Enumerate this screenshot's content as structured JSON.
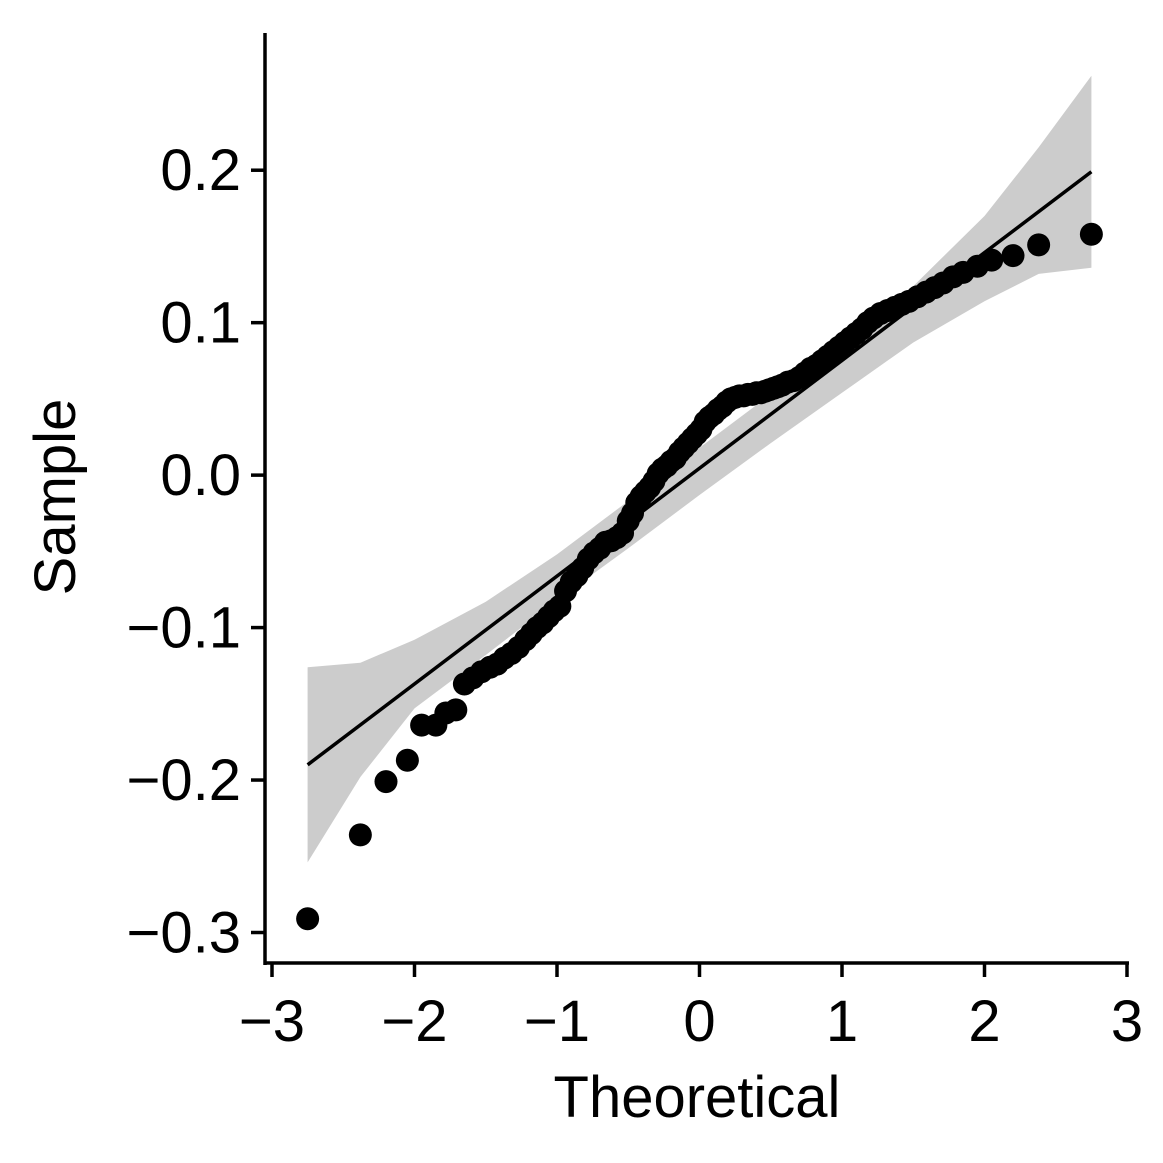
{
  "chart_data": {
    "type": "scatter",
    "subtype": "qq-plot",
    "title": "",
    "xlabel": "Theoretical",
    "ylabel": "Sample",
    "xlim": [
      -3,
      3
    ],
    "ylim": [
      -0.32,
      0.29
    ],
    "x_ticks": [
      -3,
      -2,
      -1,
      0,
      1,
      2,
      3
    ],
    "x_tick_labels": [
      "−3",
      "−2",
      "−1",
      "0",
      "1",
      "2",
      "3"
    ],
    "y_ticks": [
      -0.3,
      -0.2,
      -0.1,
      0.0,
      0.1,
      0.2
    ],
    "y_tick_labels": [
      "−0.3",
      "−0.2",
      "−0.1",
      "0.0",
      "0.1",
      "0.2"
    ],
    "grid": false,
    "legend": "none",
    "colors": {
      "points": "#000000",
      "line": "#000000",
      "band": "#cccccc"
    },
    "reference_line": {
      "x": [
        -2.75,
        2.75
      ],
      "y": [
        -0.19,
        0.199
      ]
    },
    "confidence_band": {
      "x": [
        -2.75,
        -2.38,
        -2.0,
        -1.5,
        -1.0,
        -0.5,
        0.0,
        0.5,
        1.0,
        1.5,
        2.0,
        2.38,
        2.75
      ],
      "upper": [
        -0.126,
        -0.123,
        -0.108,
        -0.083,
        -0.052,
        -0.017,
        0.018,
        0.053,
        0.086,
        0.124,
        0.17,
        0.215,
        0.262
      ],
      "lower": [
        -0.254,
        -0.198,
        -0.153,
        -0.118,
        -0.082,
        -0.048,
        -0.013,
        0.021,
        0.054,
        0.087,
        0.114,
        0.132,
        0.136
      ]
    },
    "points": {
      "x": [
        -2.75,
        -2.38,
        -2.2,
        -2.05,
        -1.95,
        -1.85,
        -1.78,
        -1.71,
        -1.65,
        -1.59,
        -1.53,
        -1.47,
        -1.42,
        -1.37,
        -1.32,
        -1.27,
        -1.22,
        -1.18,
        -1.14,
        -1.1,
        -1.06,
        -1.02,
        -0.98,
        -0.94,
        -0.9,
        -0.86,
        -0.82,
        -0.78,
        -0.74,
        -0.7,
        -0.66,
        -0.62,
        -0.58,
        -0.54,
        -0.5,
        -0.47,
        -0.44,
        -0.41,
        -0.38,
        -0.35,
        -0.32,
        -0.29,
        -0.26,
        -0.23,
        -0.2,
        -0.17,
        -0.14,
        -0.11,
        -0.08,
        -0.05,
        -0.02,
        0.01,
        0.04,
        0.07,
        0.1,
        0.13,
        0.16,
        0.19,
        0.22,
        0.25,
        0.28,
        0.31,
        0.34,
        0.37,
        0.4,
        0.43,
        0.46,
        0.49,
        0.52,
        0.55,
        0.58,
        0.62,
        0.66,
        0.7,
        0.74,
        0.78,
        0.82,
        0.86,
        0.9,
        0.94,
        0.98,
        1.02,
        1.06,
        1.1,
        1.14,
        1.18,
        1.22,
        1.27,
        1.32,
        1.37,
        1.42,
        1.47,
        1.53,
        1.59,
        1.65,
        1.71,
        1.78,
        1.85,
        1.95,
        2.05,
        2.2,
        2.38,
        2.75
      ],
      "y": [
        -0.291,
        -0.236,
        -0.201,
        -0.187,
        -0.164,
        -0.164,
        -0.156,
        -0.154,
        -0.137,
        -0.133,
        -0.129,
        -0.126,
        -0.124,
        -0.12,
        -0.117,
        -0.113,
        -0.108,
        -0.104,
        -0.1,
        -0.097,
        -0.093,
        -0.089,
        -0.086,
        -0.076,
        -0.07,
        -0.066,
        -0.061,
        -0.055,
        -0.051,
        -0.048,
        -0.044,
        -0.043,
        -0.041,
        -0.038,
        -0.03,
        -0.025,
        -0.018,
        -0.014,
        -0.011,
        -0.008,
        -0.004,
        0.001,
        0.004,
        0.006,
        0.009,
        0.011,
        0.015,
        0.018,
        0.021,
        0.024,
        0.027,
        0.03,
        0.035,
        0.038,
        0.04,
        0.043,
        0.045,
        0.048,
        0.05,
        0.051,
        0.052,
        0.052,
        0.053,
        0.053,
        0.054,
        0.054,
        0.055,
        0.056,
        0.057,
        0.058,
        0.059,
        0.061,
        0.062,
        0.064,
        0.067,
        0.07,
        0.072,
        0.075,
        0.078,
        0.081,
        0.084,
        0.087,
        0.09,
        0.093,
        0.096,
        0.1,
        0.103,
        0.106,
        0.108,
        0.11,
        0.112,
        0.114,
        0.117,
        0.12,
        0.123,
        0.126,
        0.13,
        0.133,
        0.137,
        0.141,
        0.144,
        0.151,
        0.158
      ]
    }
  }
}
